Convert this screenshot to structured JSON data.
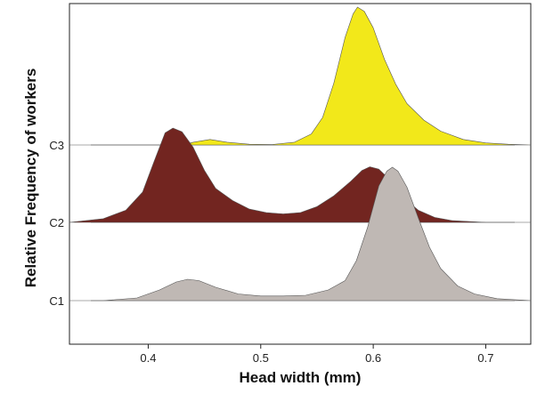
{
  "chart_data": {
    "type": "area",
    "subtype": "ridgeline-density",
    "title": "",
    "xlabel": "Head width (mm)",
    "ylabel": "Relative Frequency of workers",
    "xlim": [
      0.33,
      0.74
    ],
    "x_ticks": [
      "0.4",
      "0.5",
      "0.6",
      "0.7"
    ],
    "x_tick_values": [
      0.4,
      0.5,
      0.6,
      0.7
    ],
    "categories": [
      "C1",
      "C2",
      "C3"
    ],
    "grid": false,
    "legend": "none",
    "series": [
      {
        "name": "C1",
        "color": "#bfb8b4",
        "points": [
          [
            0.33,
            0
          ],
          [
            0.36,
            0
          ],
          [
            0.39,
            0.02
          ],
          [
            0.41,
            0.08
          ],
          [
            0.425,
            0.14
          ],
          [
            0.435,
            0.16
          ],
          [
            0.445,
            0.15
          ],
          [
            0.46,
            0.1
          ],
          [
            0.48,
            0.05
          ],
          [
            0.5,
            0.035
          ],
          [
            0.52,
            0.035
          ],
          [
            0.54,
            0.04
          ],
          [
            0.56,
            0.08
          ],
          [
            0.575,
            0.15
          ],
          [
            0.585,
            0.3
          ],
          [
            0.595,
            0.55
          ],
          [
            0.605,
            0.86
          ],
          [
            0.612,
            0.97
          ],
          [
            0.617,
            1.0
          ],
          [
            0.622,
            0.97
          ],
          [
            0.63,
            0.85
          ],
          [
            0.64,
            0.62
          ],
          [
            0.65,
            0.4
          ],
          [
            0.66,
            0.24
          ],
          [
            0.675,
            0.11
          ],
          [
            0.69,
            0.05
          ],
          [
            0.71,
            0.015
          ],
          [
            0.74,
            0
          ]
        ]
      },
      {
        "name": "C2",
        "color": "#722520",
        "points": [
          [
            0.33,
            0
          ],
          [
            0.36,
            0.03
          ],
          [
            0.38,
            0.1
          ],
          [
            0.395,
            0.25
          ],
          [
            0.405,
            0.5
          ],
          [
            0.415,
            0.74
          ],
          [
            0.422,
            0.78
          ],
          [
            0.43,
            0.75
          ],
          [
            0.44,
            0.62
          ],
          [
            0.45,
            0.43
          ],
          [
            0.46,
            0.28
          ],
          [
            0.475,
            0.18
          ],
          [
            0.49,
            0.11
          ],
          [
            0.505,
            0.08
          ],
          [
            0.52,
            0.07
          ],
          [
            0.535,
            0.08
          ],
          [
            0.55,
            0.13
          ],
          [
            0.565,
            0.22
          ],
          [
            0.58,
            0.34
          ],
          [
            0.59,
            0.43
          ],
          [
            0.597,
            0.46
          ],
          [
            0.605,
            0.44
          ],
          [
            0.615,
            0.35
          ],
          [
            0.625,
            0.22
          ],
          [
            0.64,
            0.1
          ],
          [
            0.655,
            0.04
          ],
          [
            0.67,
            0.015
          ],
          [
            0.7,
            0
          ],
          [
            0.74,
            0
          ]
        ]
      },
      {
        "name": "C3",
        "color": "#f2e81a",
        "points": [
          [
            0.33,
            0
          ],
          [
            0.43,
            0
          ],
          [
            0.44,
            0.02
          ],
          [
            0.455,
            0.04
          ],
          [
            0.47,
            0.02
          ],
          [
            0.49,
            0.005
          ],
          [
            0.51,
            0.003
          ],
          [
            0.53,
            0.02
          ],
          [
            0.545,
            0.08
          ],
          [
            0.555,
            0.2
          ],
          [
            0.565,
            0.45
          ],
          [
            0.575,
            0.78
          ],
          [
            0.582,
            0.95
          ],
          [
            0.586,
            1.0
          ],
          [
            0.592,
            0.97
          ],
          [
            0.6,
            0.85
          ],
          [
            0.61,
            0.62
          ],
          [
            0.62,
            0.44
          ],
          [
            0.63,
            0.3
          ],
          [
            0.645,
            0.18
          ],
          [
            0.66,
            0.1
          ],
          [
            0.68,
            0.04
          ],
          [
            0.7,
            0.015
          ],
          [
            0.72,
            0.005
          ],
          [
            0.74,
            0
          ]
        ]
      }
    ]
  }
}
